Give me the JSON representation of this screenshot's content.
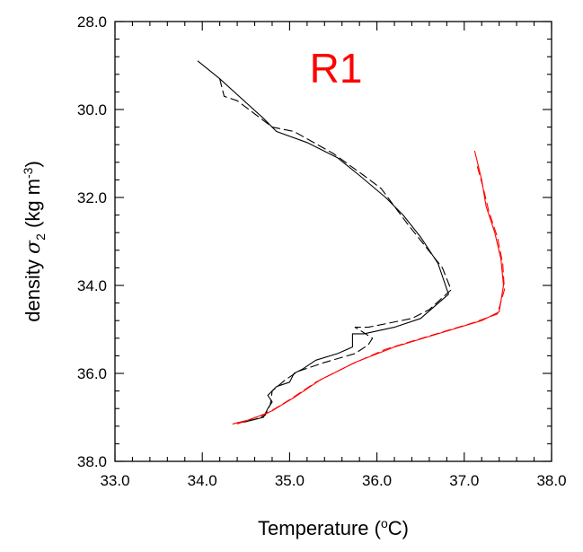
{
  "chart_data": {
    "type": "line",
    "title": "",
    "annotations": [
      {
        "text": "R1",
        "color": "#ff0000"
      }
    ],
    "xlabel": {
      "text": "Temperature (",
      "sup": "o",
      "post": "C)"
    },
    "ylabel": {
      "text": "density ",
      "sym": "σ",
      "sub": "2",
      "post": " (kg m",
      "sup": "-3",
      "close": ")"
    },
    "xlim": [
      33.0,
      38.0
    ],
    "ylim": [
      38.0,
      28.0
    ],
    "y_inverted": true,
    "grid": false,
    "legend": "none",
    "x_ticks": [
      "33.0",
      "34.0",
      "35.0",
      "36.0",
      "37.0",
      "38.0"
    ],
    "y_ticks": [
      "28.0",
      "30.0",
      "32.0",
      "34.0",
      "36.0",
      "38.0"
    ],
    "x_tick_values": [
      33,
      34,
      35,
      36,
      37,
      38
    ],
    "y_tick_values": [
      28,
      30,
      32,
      34,
      36,
      38
    ],
    "series": [
      {
        "color": "#000000",
        "dash": "solid",
        "points": [
          [
            33.95,
            28.9
          ],
          [
            34.2,
            29.3
          ],
          [
            34.7,
            30.2
          ],
          [
            34.85,
            30.5
          ],
          [
            35.2,
            30.75
          ],
          [
            35.55,
            31.1
          ],
          [
            35.8,
            31.5
          ],
          [
            36.1,
            32.0
          ],
          [
            36.3,
            32.4
          ],
          [
            36.5,
            32.9
          ],
          [
            36.7,
            33.5
          ],
          [
            36.82,
            34.2
          ],
          [
            36.5,
            34.75
          ],
          [
            36.2,
            34.95
          ],
          [
            35.85,
            35.1
          ],
          [
            35.72,
            35.1
          ],
          [
            35.72,
            35.4
          ],
          [
            35.55,
            35.55
          ],
          [
            35.3,
            35.7
          ],
          [
            35.15,
            35.9
          ],
          [
            35.05,
            36.0
          ],
          [
            35.0,
            36.2
          ],
          [
            34.85,
            36.3
          ],
          [
            34.75,
            36.5
          ],
          [
            34.8,
            36.65
          ],
          [
            34.75,
            36.8
          ],
          [
            34.7,
            37.0
          ],
          [
            34.6,
            37.05
          ],
          [
            34.5,
            37.1
          ],
          [
            34.4,
            37.12
          ]
        ]
      },
      {
        "color": "#000000",
        "dash": "dashed",
        "points": [
          [
            34.2,
            29.3
          ],
          [
            34.25,
            29.7
          ],
          [
            34.4,
            29.8
          ],
          [
            34.8,
            30.4
          ],
          [
            35.05,
            30.5
          ],
          [
            35.5,
            31.0
          ],
          [
            35.85,
            31.5
          ],
          [
            36.05,
            31.8
          ],
          [
            36.2,
            32.2
          ],
          [
            36.35,
            32.6
          ],
          [
            36.55,
            33.1
          ],
          [
            36.75,
            33.6
          ],
          [
            36.85,
            34.1
          ],
          [
            36.6,
            34.55
          ],
          [
            36.4,
            34.75
          ],
          [
            35.9,
            34.95
          ],
          [
            35.75,
            34.95
          ],
          [
            35.95,
            35.2
          ],
          [
            35.9,
            35.35
          ],
          [
            35.75,
            35.55
          ],
          [
            35.4,
            35.75
          ],
          [
            35.1,
            35.95
          ],
          [
            34.95,
            36.15
          ],
          [
            34.8,
            36.4
          ],
          [
            34.78,
            36.7
          ],
          [
            34.72,
            36.95
          ],
          [
            34.6,
            37.05
          ],
          [
            34.45,
            37.1
          ]
        ]
      },
      {
        "color": "#ff0000",
        "dash": "solid",
        "points": [
          [
            37.12,
            30.95
          ],
          [
            37.2,
            31.6
          ],
          [
            37.25,
            32.2
          ],
          [
            37.35,
            32.8
          ],
          [
            37.42,
            33.4
          ],
          [
            37.45,
            34.0
          ],
          [
            37.4,
            34.6
          ],
          [
            37.2,
            34.8
          ],
          [
            36.7,
            35.1
          ],
          [
            36.2,
            35.4
          ],
          [
            35.75,
            35.75
          ],
          [
            35.35,
            36.15
          ],
          [
            35.05,
            36.55
          ],
          [
            34.8,
            36.85
          ],
          [
            34.55,
            37.05
          ],
          [
            34.35,
            37.15
          ]
        ]
      },
      {
        "color": "#ff0000",
        "dash": "dashed",
        "points": [
          [
            37.15,
            31.3
          ],
          [
            37.22,
            31.8
          ],
          [
            37.28,
            32.3
          ],
          [
            37.38,
            32.9
          ],
          [
            37.44,
            33.5
          ],
          [
            37.46,
            34.1
          ],
          [
            37.38,
            34.65
          ],
          [
            37.1,
            34.85
          ],
          [
            36.6,
            35.15
          ],
          [
            36.1,
            35.45
          ],
          [
            35.7,
            35.8
          ],
          [
            35.3,
            36.2
          ],
          [
            35.0,
            36.6
          ],
          [
            34.75,
            36.9
          ],
          [
            34.5,
            37.08
          ],
          [
            34.4,
            37.15
          ]
        ]
      }
    ]
  }
}
